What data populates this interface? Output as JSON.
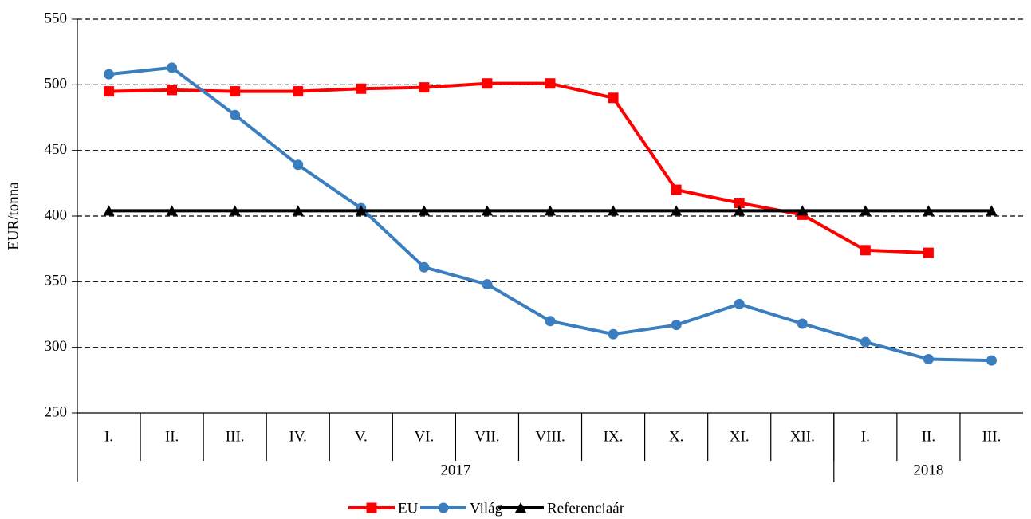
{
  "chart_data": {
    "type": "line",
    "ylabel": "EUR/tonna",
    "category_groups": [
      {
        "name": "2017",
        "categories": [
          "I.",
          "II.",
          "III.",
          "IV.",
          "V.",
          "VI.",
          "VII.",
          "VIII.",
          "IX.",
          "X.",
          "XI.",
          "XII."
        ]
      },
      {
        "name": "2018",
        "categories": [
          "I.",
          "II.",
          "III."
        ]
      }
    ],
    "series": [
      {
        "name": "EU",
        "color": "#ff0000",
        "marker": "square",
        "values": [
          495,
          496,
          495,
          495,
          497,
          498,
          501,
          501,
          490,
          420,
          410,
          401,
          374,
          372,
          null
        ]
      },
      {
        "name": "Világ",
        "color": "#3a7ebf",
        "marker": "circle",
        "values": [
          508,
          513,
          477,
          439,
          406,
          361,
          348,
          320,
          310,
          317,
          333,
          318,
          304,
          291,
          290
        ]
      },
      {
        "name": "Referenciaár",
        "color": "#000000",
        "marker": "triangle",
        "values": [
          404,
          404,
          404,
          404,
          404,
          404,
          404,
          404,
          404,
          404,
          404,
          404,
          404,
          404,
          404
        ]
      }
    ],
    "ylim": [
      250,
      550
    ],
    "yticks": [
      250,
      300,
      350,
      400,
      450,
      500,
      550
    ],
    "grid": true,
    "legend": "bottom"
  }
}
